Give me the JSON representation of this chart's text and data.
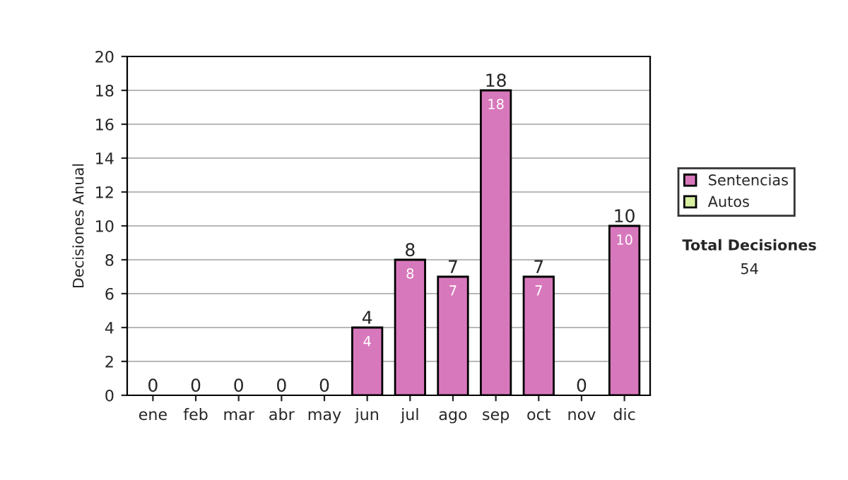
{
  "chart_data": {
    "type": "bar",
    "stacked": true,
    "ylabel": "Decisiones Anual",
    "categories": [
      "ene",
      "feb",
      "mar",
      "abr",
      "may",
      "jun",
      "jul",
      "ago",
      "sep",
      "oct",
      "nov",
      "dic"
    ],
    "series": [
      {
        "name": "Sentencias",
        "color": "#d878bc",
        "values": [
          0,
          0,
          0,
          0,
          0,
          4,
          8,
          7,
          18,
          7,
          0,
          10
        ],
        "value_labels": [
          null,
          null,
          null,
          null,
          null,
          "4",
          "8",
          "7",
          "18",
          "7",
          null,
          "10"
        ]
      },
      {
        "name": "Autos",
        "color": "#d8eea0",
        "values": [
          0,
          0,
          0,
          0,
          0,
          0,
          0,
          0,
          0,
          0,
          0,
          0
        ]
      }
    ],
    "totals": [
      "0",
      "0",
      "0",
      "0",
      "0",
      "4",
      "8",
      "7",
      "18",
      "7",
      "0",
      "10"
    ],
    "ylim": [
      0,
      20
    ],
    "yticks": [
      0,
      2,
      4,
      6,
      8,
      10,
      12,
      14,
      16,
      18,
      20
    ],
    "grid": "y",
    "legend": "right",
    "annotations": [
      "Total Decisiones",
      "54"
    ]
  }
}
